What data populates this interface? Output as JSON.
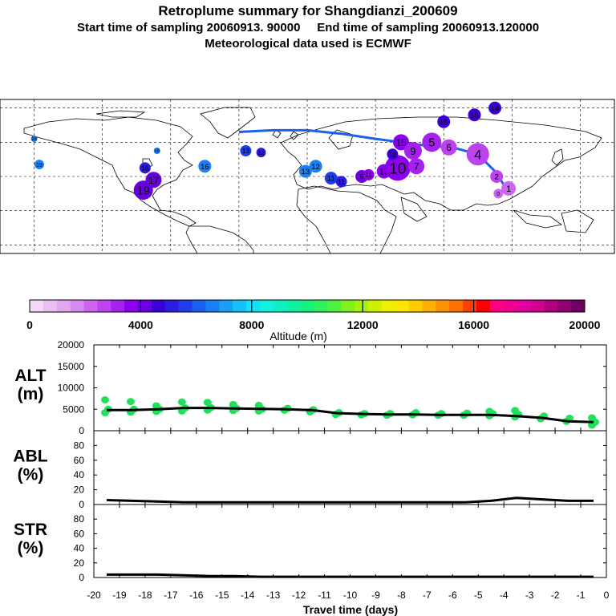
{
  "header": {
    "title": "Retroplume summary for Shangdianzi_200609",
    "subtitle": "Start time of sampling 20060913. 90000     End time of sampling 20060913.120000",
    "meteo": "Meteorological data used is ECMWF"
  },
  "colorbar": {
    "label": "Altitude (m)",
    "ticks": [
      "0",
      "4000",
      "8000",
      "12000",
      "16000",
      "20000"
    ],
    "colors": [
      "#f4d8f8",
      "#ecbff4",
      "#e3a6f0",
      "#d98aee",
      "#cc66ee",
      "#bb44ee",
      "#a322ee",
      "#8c00ee",
      "#6a00e0",
      "#3b00d8",
      "#2a1de0",
      "#1f3ee8",
      "#1a5ff0",
      "#1880f4",
      "#18a0f6",
      "#18c0f8",
      "#16dff8",
      "#12f0e0",
      "#0ff0c0",
      "#10f0a0",
      "#18f080",
      "#30f060",
      "#50f040",
      "#80f020",
      "#a8f010",
      "#d0f000",
      "#eef000",
      "#ffe600",
      "#ffcc00",
      "#ffb000",
      "#ff9000",
      "#ff7000",
      "#ff4000",
      "#ff0000",
      "#ff0080",
      "#f00090",
      "#e000a0",
      "#d00090",
      "#b00080",
      "#900070",
      "#700060"
    ]
  },
  "map": {
    "markers": [
      {
        "label": "19",
        "lon": -96,
        "lat": 22,
        "alt": 4300,
        "size": 12
      },
      {
        "label": "17",
        "lon": -90,
        "lat": 28,
        "alt": 4300,
        "size": 10
      },
      {
        "label": "16",
        "lon": -95,
        "lat": 35,
        "alt": 5000,
        "size": 7
      },
      {
        "label": "15",
        "lon": -88,
        "lat": 45,
        "alt": 6500,
        "size": 4
      },
      {
        "label": "18",
        "lon": -160,
        "lat": 52,
        "alt": 6500,
        "size": 4
      },
      {
        "label": "19",
        "lon": -157,
        "lat": 37,
        "alt": 6500,
        "size": 6
      },
      {
        "label": "16",
        "lon": -60,
        "lat": 36,
        "alt": 6500,
        "size": 8
      },
      {
        "label": "13",
        "lon": -36,
        "lat": 45,
        "alt": 5500,
        "size": 7
      },
      {
        "label": "12",
        "lon": -27,
        "lat": 44,
        "alt": 5000,
        "size": 6
      },
      {
        "label": "13",
        "lon": -1,
        "lat": 33,
        "alt": 6500,
        "size": 8
      },
      {
        "label": "12",
        "lon": 5,
        "lat": 36,
        "alt": 6500,
        "size": 8
      },
      {
        "label": "11",
        "lon": 14,
        "lat": 29,
        "alt": 5500,
        "size": 8
      },
      {
        "label": "11",
        "lon": 20,
        "lat": 27,
        "alt": 5000,
        "size": 7
      },
      {
        "label": "9",
        "lon": 32,
        "lat": 30,
        "alt": 4000,
        "size": 8
      },
      {
        "label": "11",
        "lon": 36,
        "lat": 31,
        "alt": 3800,
        "size": 7
      },
      {
        "label": "13",
        "lon": 45,
        "lat": 33,
        "alt": 3500,
        "size": 9
      },
      {
        "label": "10",
        "lon": 53,
        "lat": 35,
        "alt": 3500,
        "size": 16
      },
      {
        "label": "12",
        "lon": 50,
        "lat": 43,
        "alt": 4500,
        "size": 7
      },
      {
        "label": "15",
        "lon": 55,
        "lat": 50,
        "alt": 3600,
        "size": 10
      },
      {
        "label": "9",
        "lon": 62,
        "lat": 45,
        "alt": 3000,
        "size": 11
      },
      {
        "label": "5",
        "lon": 73,
        "lat": 50,
        "alt": 3000,
        "size": 12
      },
      {
        "label": "7",
        "lon": 64,
        "lat": 36,
        "alt": 3000,
        "size": 10
      },
      {
        "label": "6",
        "lon": 83,
        "lat": 47,
        "alt": 2800,
        "size": 10
      },
      {
        "label": "4",
        "lon": 100,
        "lat": 43,
        "alt": 2900,
        "size": 14
      },
      {
        "label": "2",
        "lon": 111,
        "lat": 30,
        "alt": 2500,
        "size": 8
      },
      {
        "label": "1",
        "lon": 118,
        "lat": 23,
        "alt": 2400,
        "size": 9
      },
      {
        "label": "0",
        "lon": 112,
        "lat": 20,
        "alt": 2100,
        "size": 6
      },
      {
        "label": "15",
        "lon": 80,
        "lat": 62,
        "alt": 4500,
        "size": 8
      },
      {
        "label": "15",
        "lon": 98,
        "lat": 66,
        "alt": 4500,
        "size": 8
      },
      {
        "label": "14",
        "lon": 110,
        "lat": 70,
        "alt": 4800,
        "size": 8
      }
    ]
  },
  "time_series": {
    "xlabel": "Travel time (days)",
    "x_ticks": [
      "-20",
      "-19",
      "-18",
      "-17",
      "-16",
      "-15",
      "-14",
      "-13",
      "-12",
      "-11",
      "-10",
      "-9",
      "-8",
      "-7",
      "-6",
      "-5",
      "-4",
      "-3",
      "-2",
      "-1",
      "0"
    ],
    "panels": [
      {
        "label_top": "ALT",
        "label_bottom": "(m)",
        "ticks": [
          "0",
          "5000",
          "10000",
          "15000",
          "20000"
        ]
      },
      {
        "label_top": "ABL",
        "label_bottom": "(%)",
        "ticks": [
          "0",
          "20",
          "40",
          "60",
          "80"
        ]
      },
      {
        "label_top": "STR",
        "label_bottom": "(%)",
        "ticks": [
          "0",
          "20",
          "40",
          "60",
          "80"
        ]
      }
    ]
  },
  "chart_data": {
    "type": "line",
    "title": "Retroplume summary for Shangdianzi_200609",
    "xlabel": "Travel time (days)",
    "xlim": [
      -20,
      0
    ],
    "series": [
      {
        "name": "ALT (m)",
        "ylim": [
          0,
          20000
        ],
        "x": [
          -19.5,
          -18.5,
          -17.5,
          -16.5,
          -15.5,
          -14.5,
          -13.5,
          -12.5,
          -11.5,
          -10.5,
          -9.5,
          -8.5,
          -7.5,
          -6.5,
          -5.5,
          -4.5,
          -3.5,
          -2.5,
          -1.5,
          -0.5
        ],
        "y": [
          4800,
          4800,
          5000,
          5300,
          5300,
          5200,
          5100,
          5000,
          4800,
          4100,
          3900,
          3800,
          3800,
          3700,
          3700,
          3700,
          3400,
          3000,
          2200,
          2000
        ],
        "clusters": [
          {
            "x": -19.5,
            "values": [
              4200,
              5000,
              7200
            ]
          },
          {
            "x": -18.5,
            "values": [
              4300,
              5000,
              6800
            ]
          },
          {
            "x": -17.5,
            "values": [
              4500,
              5000,
              5800
            ]
          },
          {
            "x": -16.5,
            "values": [
              4600,
              5300,
              6700
            ]
          },
          {
            "x": -15.5,
            "values": [
              4800,
              5400,
              6600
            ]
          },
          {
            "x": -14.5,
            "values": [
              4700,
              5200,
              6100
            ]
          },
          {
            "x": -13.5,
            "values": [
              4600,
              5000,
              5900
            ]
          },
          {
            "x": -12.5,
            "values": [
              4800,
              5200
            ]
          },
          {
            "x": -11.5,
            "values": [
              4400,
              4900
            ]
          },
          {
            "x": -10.5,
            "values": [
              3800,
              4200
            ]
          },
          {
            "x": -9.5,
            "values": [
              3700,
              4000
            ]
          },
          {
            "x": -8.5,
            "values": [
              3600,
              4000
            ]
          },
          {
            "x": -7.5,
            "values": [
              3700,
              4200
            ]
          },
          {
            "x": -6.5,
            "values": [
              3600,
              4000
            ]
          },
          {
            "x": -5.5,
            "values": [
              3600,
              4100
            ]
          },
          {
            "x": -4.5,
            "values": [
              3500,
              4000,
              4500
            ]
          },
          {
            "x": -3.5,
            "values": [
              3200,
              3800,
              4700
            ]
          },
          {
            "x": -2.5,
            "values": [
              2800,
              3400
            ]
          },
          {
            "x": -1.5,
            "values": [
              2200,
              2900
            ]
          },
          {
            "x": -0.5,
            "values": [
              1300,
              2000,
              3000
            ]
          }
        ]
      },
      {
        "name": "ABL (%)",
        "ylim": [
          0,
          100
        ],
        "x": [
          -19.5,
          -18.5,
          -17.5,
          -16.5,
          -15.5,
          -14.5,
          -13.5,
          -12.5,
          -11.5,
          -10.5,
          -9.5,
          -8.5,
          -7.5,
          -6.5,
          -5.5,
          -4.5,
          -3.5,
          -2.5,
          -1.5,
          -0.5
        ],
        "y": [
          6,
          5,
          4,
          3,
          3,
          3,
          3,
          3,
          3,
          3,
          3,
          3,
          3,
          3,
          3,
          5,
          9,
          7,
          5,
          5
        ]
      },
      {
        "name": "STR (%)",
        "ylim": [
          0,
          100
        ],
        "x": [
          -19.5,
          -18.5,
          -17.5,
          -16.5,
          -15.5,
          -14.5,
          -13.5,
          -12.5,
          -11.5,
          -10.5,
          -9.5,
          -8.5,
          -7.5,
          -6.5,
          -5.5,
          -4.5,
          -3.5,
          -2.5,
          -1.5,
          -0.5
        ],
        "y": [
          4,
          4,
          4,
          3,
          2,
          2,
          1,
          1,
          1,
          1,
          1,
          1,
          1,
          1,
          1,
          1,
          1,
          1,
          1,
          1
        ]
      }
    ]
  }
}
